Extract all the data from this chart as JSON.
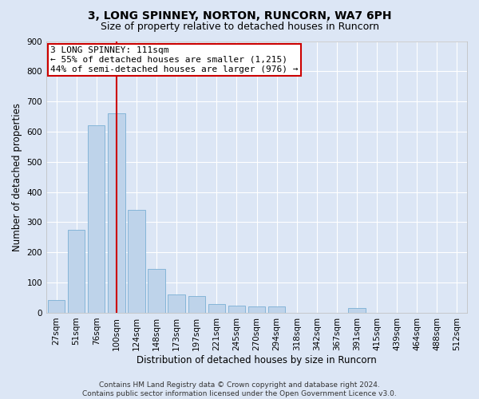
{
  "title": "3, LONG SPINNEY, NORTON, RUNCORN, WA7 6PH",
  "subtitle": "Size of property relative to detached houses in Runcorn",
  "xlabel": "Distribution of detached houses by size in Runcorn",
  "ylabel": "Number of detached properties",
  "categories": [
    "27sqm",
    "51sqm",
    "76sqm",
    "100sqm",
    "124sqm",
    "148sqm",
    "173sqm",
    "197sqm",
    "221sqm",
    "245sqm",
    "270sqm",
    "294sqm",
    "318sqm",
    "342sqm",
    "367sqm",
    "391sqm",
    "415sqm",
    "439sqm",
    "464sqm",
    "488sqm",
    "512sqm"
  ],
  "values": [
    42,
    275,
    620,
    660,
    340,
    145,
    60,
    55,
    30,
    25,
    20,
    20,
    0,
    0,
    0,
    15,
    0,
    0,
    0,
    0,
    0
  ],
  "bar_color": "#bed3ea",
  "bar_edge_color": "#7aafd4",
  "vline_x": 3,
  "vline_color": "#cc0000",
  "annotation_text": "3 LONG SPINNEY: 111sqm\n← 55% of detached houses are smaller (1,215)\n44% of semi-detached houses are larger (976) →",
  "annotation_box_facecolor": "#ffffff",
  "annotation_box_edgecolor": "#cc0000",
  "ylim": [
    0,
    900
  ],
  "yticks": [
    0,
    100,
    200,
    300,
    400,
    500,
    600,
    700,
    800,
    900
  ],
  "footer_text": "Contains HM Land Registry data © Crown copyright and database right 2024.\nContains public sector information licensed under the Open Government Licence v3.0.",
  "bg_color": "#dce6f5",
  "plot_bg_color": "#dce6f5",
  "title_fontsize": 10,
  "subtitle_fontsize": 9,
  "xlabel_fontsize": 8.5,
  "ylabel_fontsize": 8.5,
  "tick_fontsize": 7.5,
  "annotation_fontsize": 8,
  "footer_fontsize": 6.5
}
